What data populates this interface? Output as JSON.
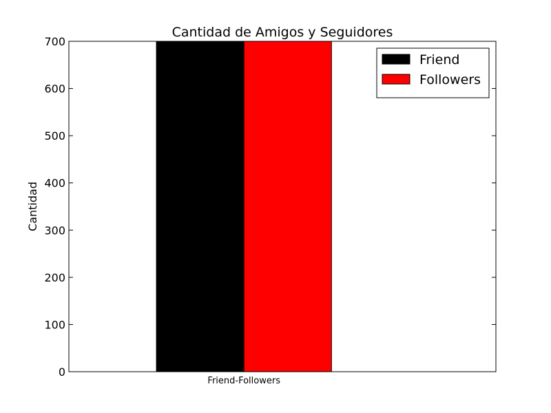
{
  "chart_data": {
    "type": "bar",
    "title": "Cantidad de Amigos y Seguidores",
    "xlabel": "",
    "ylabel": "Cantidad",
    "categories": [
      "Friend-Followers"
    ],
    "series": [
      {
        "name": "Friend",
        "values": [
          700
        ],
        "color": "#000000"
      },
      {
        "name": "Followers",
        "values": [
          700
        ],
        "color": "#ff0000"
      }
    ],
    "ylim": [
      0,
      700
    ],
    "yticks": [
      0,
      100,
      200,
      300,
      400,
      500,
      600,
      700
    ],
    "grid": false,
    "legend_position": "top-right"
  }
}
